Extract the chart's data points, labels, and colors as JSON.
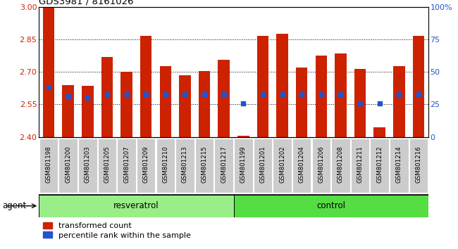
{
  "title": "GDS3981 / 8161026",
  "samples": [
    "GSM801198",
    "GSM801200",
    "GSM801203",
    "GSM801205",
    "GSM801207",
    "GSM801209",
    "GSM801210",
    "GSM801213",
    "GSM801215",
    "GSM801217",
    "GSM801199",
    "GSM801201",
    "GSM801202",
    "GSM801204",
    "GSM801206",
    "GSM801208",
    "GSM801211",
    "GSM801212",
    "GSM801214",
    "GSM801216"
  ],
  "transformed_count": [
    3.0,
    2.64,
    2.635,
    2.77,
    2.7,
    2.865,
    2.725,
    2.685,
    2.705,
    2.755,
    2.405,
    2.865,
    2.875,
    2.72,
    2.775,
    2.785,
    2.715,
    2.445,
    2.725,
    2.865
  ],
  "percentile_rank": [
    38,
    31,
    30,
    33,
    33,
    33,
    33,
    33,
    33,
    33,
    26,
    33,
    33,
    33,
    33,
    33,
    26,
    26,
    33,
    33
  ],
  "group": [
    "resveratrol",
    "resveratrol",
    "resveratrol",
    "resveratrol",
    "resveratrol",
    "resveratrol",
    "resveratrol",
    "resveratrol",
    "resveratrol",
    "resveratrol",
    "control",
    "control",
    "control",
    "control",
    "control",
    "control",
    "control",
    "control",
    "control",
    "control"
  ],
  "ylim_left": [
    2.4,
    3.0
  ],
  "ylim_right": [
    0,
    100
  ],
  "yticks_left": [
    2.4,
    2.55,
    2.7,
    2.85,
    3.0
  ],
  "yticks_right": [
    0,
    25,
    50,
    75,
    100
  ],
  "bar_color": "#cc2200",
  "dot_color": "#2255cc",
  "resveratrol_color": "#99ee88",
  "control_color": "#55dd44",
  "tick_bg_color": "#cccccc",
  "legend_items": [
    "transformed count",
    "percentile rank within the sample"
  ],
  "agent_label": "agent",
  "grid_lines": [
    2.55,
    2.7,
    2.85
  ],
  "n_resveratrol": 10
}
